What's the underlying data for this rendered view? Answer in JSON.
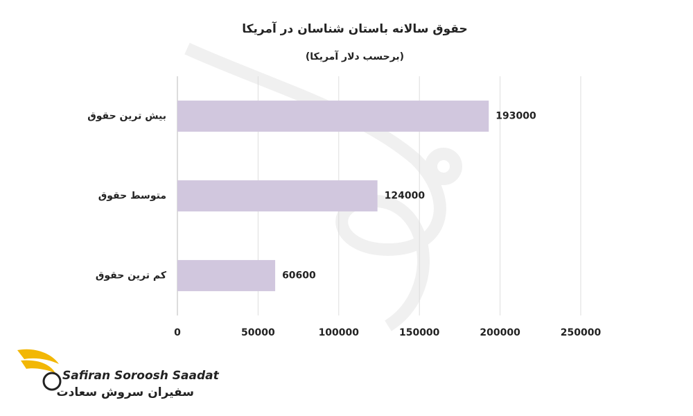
{
  "chart_data": {
    "type": "barh",
    "title": "حقوق سالانه باستان شناسان در آمریکا",
    "subtitle": "(برحسب دلار آمریکا)",
    "categories": [
      "بیش ترین حقوق",
      "متوسط حقوق",
      "کم ترین حقوق"
    ],
    "values": [
      193000,
      124000,
      60600
    ],
    "color": "#d1c7de",
    "xlim": [
      0,
      250000
    ],
    "xticks": [
      0,
      50000,
      100000,
      150000,
      200000,
      250000
    ],
    "grid": true
  },
  "logo": {
    "name_en": "Safiran Soroosh Saadat",
    "name_fa": "سفیران سروش سعادت"
  }
}
